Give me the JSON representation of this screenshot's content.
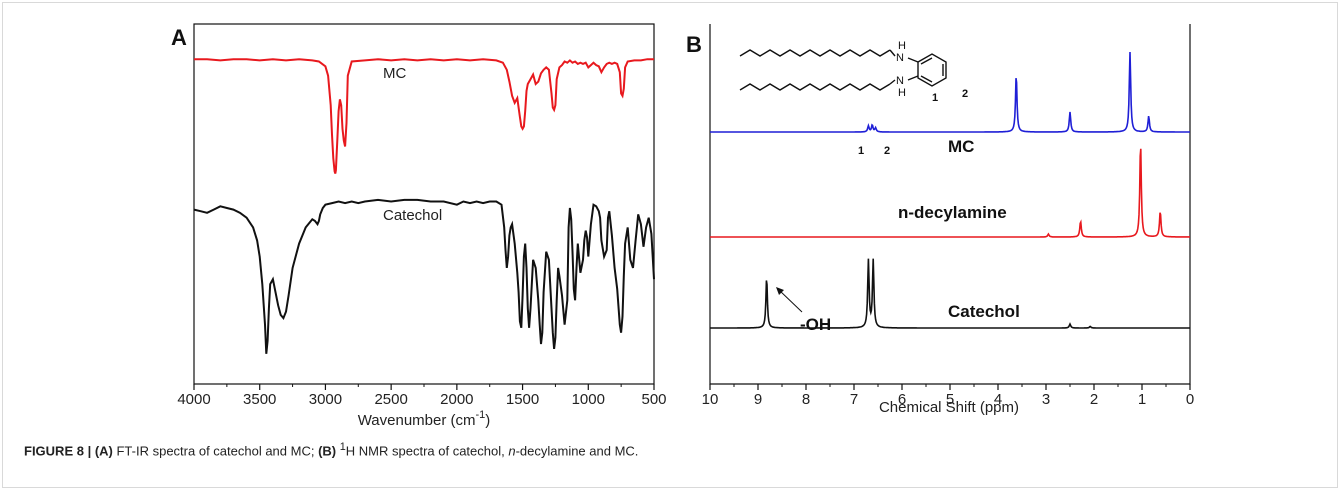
{
  "chart_data": [
    {
      "panel": "A",
      "type": "line",
      "xlabel": "Wavenumber (cm",
      "xlabel_sup": "-1",
      "xlabel_end": ")",
      "ylabel": "",
      "xlim": [
        4000,
        500
      ],
      "x_reversed": true,
      "xticks": [
        4000,
        3500,
        3000,
        2500,
        2000,
        1500,
        1000,
        500
      ],
      "yticks_visible": false,
      "series": [
        {
          "name": "MC",
          "color": "#e8191e",
          "x": [
            4000,
            3900,
            3800,
            3700,
            3600,
            3500,
            3400,
            3300,
            3200,
            3100,
            3050,
            3000,
            2980,
            2960,
            2950,
            2940,
            2930,
            2925,
            2920,
            2910,
            2900,
            2890,
            2880,
            2870,
            2860,
            2850,
            2840,
            2830,
            2800,
            2700,
            2600,
            2500,
            2400,
            2300,
            2200,
            2100,
            2000,
            1900,
            1800,
            1700,
            1650,
            1620,
            1600,
            1580,
            1560,
            1540,
            1520,
            1510,
            1500,
            1490,
            1480,
            1470,
            1460,
            1440,
            1420,
            1400,
            1380,
            1360,
            1340,
            1320,
            1300,
            1280,
            1270,
            1260,
            1250,
            1240,
            1220,
            1200,
            1180,
            1160,
            1140,
            1120,
            1100,
            1080,
            1060,
            1040,
            1020,
            1000,
            980,
            960,
            940,
            920,
            900,
            880,
            860,
            840,
            820,
            800,
            780,
            760,
            750,
            740,
            730,
            720,
            700,
            650,
            600,
            550,
            500
          ],
          "y": [
            0.99,
            0.99,
            0.98,
            0.99,
            0.99,
            0.98,
            0.99,
            0.98,
            0.99,
            0.98,
            0.97,
            0.93,
            0.85,
            0.6,
            0.35,
            0.15,
            0.04,
            0.02,
            0.05,
            0.3,
            0.55,
            0.65,
            0.6,
            0.4,
            0.3,
            0.25,
            0.45,
            0.85,
            0.97,
            0.98,
            0.99,
            0.98,
            0.99,
            0.98,
            0.99,
            0.98,
            0.99,
            0.98,
            0.99,
            0.98,
            0.96,
            0.9,
            0.8,
            0.68,
            0.62,
            0.66,
            0.5,
            0.42,
            0.4,
            0.42,
            0.55,
            0.72,
            0.78,
            0.82,
            0.86,
            0.78,
            0.8,
            0.87,
            0.9,
            0.92,
            0.9,
            0.7,
            0.58,
            0.56,
            0.6,
            0.82,
            0.92,
            0.94,
            0.97,
            0.96,
            0.98,
            0.96,
            0.97,
            0.95,
            0.96,
            0.95,
            0.96,
            0.92,
            0.94,
            0.96,
            0.94,
            0.93,
            0.88,
            0.92,
            0.95,
            0.96,
            0.95,
            0.96,
            0.95,
            0.88,
            0.7,
            0.68,
            0.74,
            0.92,
            0.97,
            0.98,
            0.98,
            0.99,
            0.99
          ]
        },
        {
          "name": "Catechol",
          "color": "#111111",
          "x": [
            4000,
            3950,
            3900,
            3850,
            3800,
            3750,
            3700,
            3650,
            3600,
            3550,
            3520,
            3500,
            3480,
            3460,
            3450,
            3440,
            3430,
            3420,
            3400,
            3380,
            3360,
            3340,
            3320,
            3300,
            3280,
            3250,
            3200,
            3150,
            3100,
            3080,
            3060,
            3050,
            3040,
            3020,
            3000,
            2950,
            2900,
            2850,
            2800,
            2750,
            2700,
            2600,
            2500,
            2400,
            2300,
            2200,
            2100,
            2000,
            1950,
            1900,
            1850,
            1800,
            1750,
            1700,
            1660,
            1640,
            1630,
            1620,
            1610,
            1600,
            1590,
            1580,
            1560,
            1540,
            1530,
            1520,
            1510,
            1500,
            1490,
            1480,
            1470,
            1460,
            1450,
            1440,
            1420,
            1400,
            1380,
            1370,
            1360,
            1350,
            1340,
            1320,
            1300,
            1280,
            1270,
            1260,
            1250,
            1240,
            1230,
            1220,
            1200,
            1180,
            1160,
            1150,
            1140,
            1130,
            1120,
            1110,
            1100,
            1090,
            1080,
            1060,
            1040,
            1030,
            1020,
            1010,
            1000,
            980,
            960,
            940,
            920,
            910,
            900,
            880,
            860,
            850,
            840,
            820,
            800,
            780,
            760,
            750,
            740,
            730,
            720,
            700,
            680,
            660,
            640,
            620,
            600,
            580,
            560,
            540,
            520,
            500
          ],
          "y": [
            0.91,
            0.9,
            0.89,
            0.91,
            0.93,
            0.92,
            0.91,
            0.89,
            0.86,
            0.8,
            0.72,
            0.62,
            0.45,
            0.2,
            0.02,
            0.1,
            0.3,
            0.45,
            0.48,
            0.4,
            0.32,
            0.26,
            0.24,
            0.28,
            0.38,
            0.55,
            0.7,
            0.8,
            0.85,
            0.84,
            0.82,
            0.84,
            0.88,
            0.92,
            0.94,
            0.95,
            0.96,
            0.95,
            0.96,
            0.95,
            0.96,
            0.97,
            0.96,
            0.97,
            0.97,
            0.96,
            0.96,
            0.94,
            0.96,
            0.95,
            0.96,
            0.95,
            0.96,
            0.96,
            0.94,
            0.8,
            0.66,
            0.55,
            0.62,
            0.75,
            0.8,
            0.82,
            0.7,
            0.52,
            0.4,
            0.22,
            0.18,
            0.38,
            0.62,
            0.7,
            0.55,
            0.3,
            0.18,
            0.3,
            0.6,
            0.55,
            0.35,
            0.2,
            0.08,
            0.15,
            0.4,
            0.65,
            0.6,
            0.3,
            0.15,
            0.05,
            0.12,
            0.35,
            0.55,
            0.5,
            0.38,
            0.2,
            0.35,
            0.8,
            0.92,
            0.85,
            0.65,
            0.42,
            0.35,
            0.55,
            0.7,
            0.52,
            0.6,
            0.72,
            0.78,
            0.74,
            0.62,
            0.82,
            0.94,
            0.93,
            0.9,
            0.86,
            0.72,
            0.62,
            0.66,
            0.86,
            0.9,
            0.75,
            0.55,
            0.42,
            0.2,
            0.15,
            0.25,
            0.5,
            0.7,
            0.8,
            0.6,
            0.55,
            0.72,
            0.88,
            0.82,
            0.68,
            0.8,
            0.86,
            0.76,
            0.48
          ]
        }
      ],
      "annotations": [
        "MC",
        "Catechol"
      ]
    },
    {
      "panel": "B",
      "type": "line",
      "xlabel": "Chemical Shift (ppm)",
      "ylabel": "",
      "xlim": [
        10,
        0
      ],
      "x_reversed": true,
      "xticks": [
        10,
        9,
        8,
        7,
        6,
        5,
        4,
        3,
        2,
        1,
        0
      ],
      "yticks_visible": false,
      "series": [
        {
          "name": "MC",
          "color": "#1f1fd6",
          "peaks": [
            {
              "ppm": 6.7,
              "height": 0.06
            },
            {
              "ppm": 6.62,
              "height": 0.07
            },
            {
              "ppm": 6.55,
              "height": 0.04
            },
            {
              "ppm": 3.62,
              "height": 0.58
            },
            {
              "ppm": 2.5,
              "height": 0.2
            },
            {
              "ppm": 1.25,
              "height": 0.8
            },
            {
              "ppm": 0.86,
              "height": 0.16
            }
          ]
        },
        {
          "name": "n-decylamine",
          "color": "#e8191e",
          "peaks": [
            {
              "ppm": 2.95,
              "height": 0.03
            },
            {
              "ppm": 2.28,
              "height": 0.16
            },
            {
              "ppm": 1.03,
              "height": 0.95
            },
            {
              "ppm": 0.62,
              "height": 0.26
            }
          ]
        },
        {
          "name": "Catechol",
          "color": "#111111",
          "peaks": [
            {
              "ppm": 8.82,
              "height": 0.64
            },
            {
              "ppm": 6.7,
              "height": 0.84
            },
            {
              "ppm": 6.6,
              "height": 0.84
            },
            {
              "ppm": 2.5,
              "height": 0.05
            },
            {
              "ppm": 2.08,
              "height": 0.02
            }
          ]
        }
      ],
      "annotations": {
        "mc_label": "MC",
        "decylamine_label": "n-decylamine",
        "catechol_label": "Catechol",
        "oh_label": "-OH",
        "peak1_label": "1",
        "peak2_label": "2",
        "struct_nh1": "H",
        "struct_n1": "N",
        "struct_nh2": "N",
        "struct_h2": "H",
        "struct_pos1": "1",
        "struct_pos2": "2"
      }
    }
  ],
  "panel_letters": {
    "a": "A",
    "b": "B"
  },
  "caption": {
    "figure": "FIGURE 8 |",
    "part_a_label": "(A)",
    "part_a_text": " FT-IR spectra of catechol and MC; ",
    "part_b_label": "(B)",
    "superscript": "1",
    "part_b_text_1": "H NMR spectra of catechol, ",
    "italic": "n",
    "part_b_text_2": "-decylamine and MC."
  }
}
